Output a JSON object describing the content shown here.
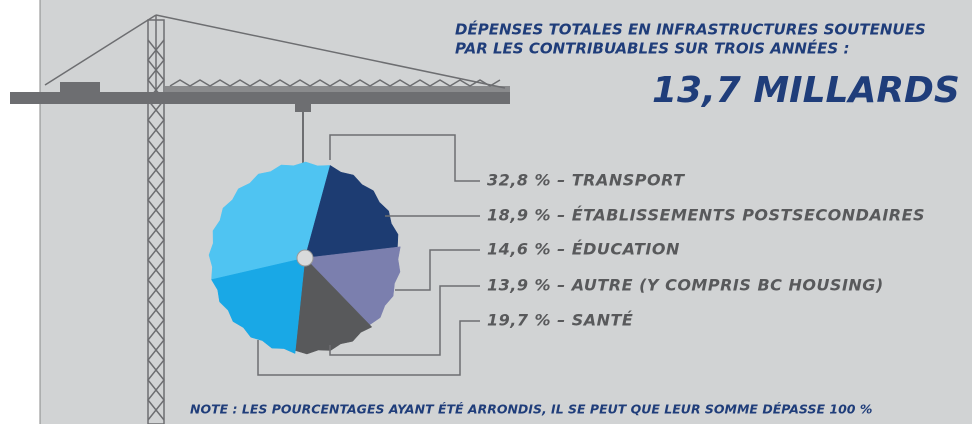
{
  "title": {
    "line1": "DÉPENSES TOTALES EN INFRASTRUCTURES SOUTENUES",
    "line2": "PAR LES CONTRIBUABLES SUR TROIS ANNÉES :",
    "total": "13,7 MILLARDS $"
  },
  "chart_data": {
    "type": "pie",
    "values": [
      32.8,
      18.9,
      14.6,
      13.9,
      19.7
    ],
    "value_labels": [
      "32,8 % – TRANSPORT",
      "18,9 % – ÉTABLISSEMENTS POSTSECONDAIRES",
      "14,6 % – ÉDUCATION",
      "13,9 % – AUTRE (Y COMPRIS BC HOUSING)",
      "19,7 % – SANTÉ"
    ],
    "colors": [
      "#4fc4f2",
      "#1d3c72",
      "#7b7fae",
      "#58595b",
      "#19a8e6"
    ]
  },
  "note": "NOTE : LES POURCENTAGES AYANT ÉTÉ ARRONDIS, IL SE PEUT QUE LEUR SOMME DÉPASSE 100 %"
}
